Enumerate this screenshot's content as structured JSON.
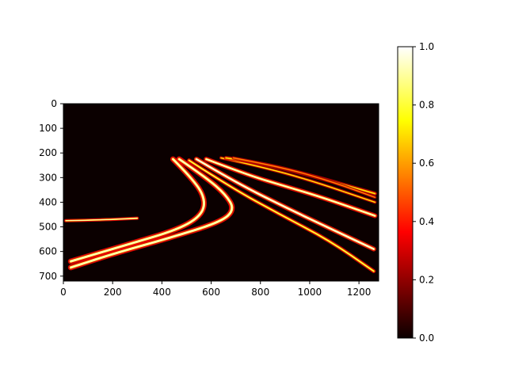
{
  "chart_data": {
    "type": "heatmap",
    "title": "",
    "xlabel": "",
    "ylabel": "",
    "xlim": [
      0,
      1280
    ],
    "ylim": [
      720,
      0
    ],
    "x_ticks": [
      0,
      200,
      400,
      600,
      800,
      1000,
      1200
    ],
    "y_ticks": [
      0,
      100,
      200,
      300,
      400,
      500,
      600,
      700
    ],
    "colormap": "hot",
    "colorbar": {
      "range": [
        0.0,
        1.0
      ],
      "ticks": [
        "0.0",
        "0.2",
        "0.4",
        "0.6",
        "0.8",
        "1.0"
      ]
    },
    "background_value": 0.03,
    "curves": [
      {
        "intensity": 0.85,
        "width": 7,
        "points": [
          [
            445,
            225
          ],
          [
            520,
            300
          ],
          [
            575,
            380
          ],
          [
            565,
            450
          ],
          [
            470,
            510
          ],
          [
            250,
            575
          ],
          [
            30,
            640
          ]
        ]
      },
      {
        "intensity": 0.85,
        "width": 7,
        "points": [
          [
            470,
            225
          ],
          [
            580,
            300
          ],
          [
            660,
            370
          ],
          [
            695,
            430
          ],
          [
            640,
            480
          ],
          [
            430,
            545
          ],
          [
            200,
            610
          ],
          [
            30,
            665
          ]
        ]
      },
      {
        "intensity": 0.9,
        "width": 6,
        "points": [
          [
            540,
            225
          ],
          [
            700,
            320
          ],
          [
            900,
            420
          ],
          [
            1100,
            515
          ],
          [
            1260,
            590
          ]
        ]
      },
      {
        "intensity": 0.7,
        "width": 5,
        "points": [
          [
            510,
            230
          ],
          [
            680,
            340
          ],
          [
            880,
            450
          ],
          [
            1080,
            555
          ],
          [
            1260,
            680
          ]
        ]
      },
      {
        "intensity": 0.85,
        "width": 6,
        "points": [
          [
            580,
            225
          ],
          [
            750,
            290
          ],
          [
            900,
            335
          ],
          [
            1050,
            380
          ],
          [
            1265,
            455
          ]
        ]
      },
      {
        "intensity": 0.6,
        "width": 4,
        "points": [
          [
            640,
            220
          ],
          [
            800,
            255
          ],
          [
            1000,
            310
          ],
          [
            1265,
            400
          ]
        ]
      },
      {
        "intensity": 0.6,
        "width": 5,
        "points": [
          [
            660,
            220
          ],
          [
            800,
            240
          ],
          [
            1000,
            290
          ],
          [
            1265,
            365
          ]
        ]
      },
      {
        "intensity": 0.45,
        "width": 4,
        "points": [
          [
            690,
            220
          ],
          [
            900,
            260
          ],
          [
            1100,
            320
          ],
          [
            1265,
            380
          ]
        ]
      },
      {
        "intensity": 0.8,
        "width": 4,
        "points": [
          [
            10,
            475
          ],
          [
            150,
            472
          ],
          [
            300,
            465
          ]
        ]
      }
    ]
  }
}
